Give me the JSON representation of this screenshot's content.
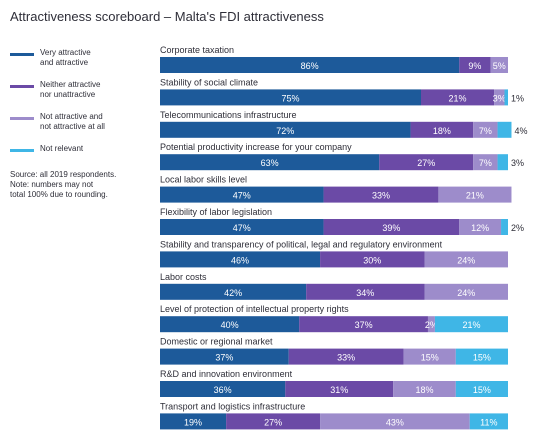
{
  "title": "Attractiveness scoreboard – Malta's FDI attractiveness",
  "legend": [
    {
      "label": "Very attractive\nand attractive",
      "color": "#1d5a9a"
    },
    {
      "label": "Neither attractive\nnor unattractive",
      "color": "#6b4aa6"
    },
    {
      "label": "Not attractive and\nnot attractive at all",
      "color": "#9d8ccb"
    },
    {
      "label": "Not relevant",
      "color": "#3fb6e6"
    }
  ],
  "note": "Source: all 2019 respondents.\nNote: numbers may not\ntotal 100% due to rounding.",
  "chart_data": {
    "type": "bar",
    "orientation": "horizontal",
    "stacked": true,
    "title": "Attractiveness scoreboard – Malta's FDI attractiveness",
    "categories": [
      "Corporate taxation",
      "Stability of social climate",
      "Telecommunications infrastructure",
      "Potential productivity increase for your company",
      "Local labor skills level",
      "Flexibility of labor legislation",
      "Stability and transparency of political, legal and regulatory environment",
      "Labor costs",
      "Level of protection of intellectual property rights",
      "Domestic or regional market",
      "R&D and innovation environment",
      "Transport and logistics infrastructure"
    ],
    "series": [
      {
        "name": "Very attractive and attractive",
        "color": "#1d5a9a",
        "values": [
          86,
          75,
          72,
          63,
          47,
          47,
          46,
          42,
          40,
          37,
          36,
          19
        ]
      },
      {
        "name": "Neither attractive nor unattractive",
        "color": "#6b4aa6",
        "values": [
          9,
          21,
          18,
          27,
          33,
          39,
          30,
          34,
          37,
          33,
          31,
          27
        ]
      },
      {
        "name": "Not attractive and not attractive at all",
        "color": "#9d8ccb",
        "values": [
          5,
          3,
          7,
          7,
          21,
          12,
          24,
          24,
          2,
          15,
          18,
          43
        ]
      },
      {
        "name": "Not relevant",
        "color": "#3fb6e6",
        "values": [
          0,
          1,
          4,
          3,
          0,
          2,
          0,
          0,
          21,
          15,
          15,
          11
        ]
      }
    ],
    "labels": [
      [
        "86%",
        "9%",
        "5%",
        ""
      ],
      [
        "75%",
        "21%",
        "3%",
        "1%"
      ],
      [
        "72%",
        "18%",
        "7%",
        "4%"
      ],
      [
        "63%",
        "27%",
        "7%",
        "3%"
      ],
      [
        "47%",
        "33%",
        "21%",
        ""
      ],
      [
        "47%",
        "39%",
        "12%",
        "2%"
      ],
      [
        "46%",
        "30%",
        "24%",
        ""
      ],
      [
        "42%",
        "34%",
        "24%",
        ""
      ],
      [
        "40%",
        "37%",
        "2%",
        "21%"
      ],
      [
        "37%",
        "33%",
        "15%",
        "15%"
      ],
      [
        "36%",
        "31%",
        "18%",
        "15%"
      ],
      [
        "19%",
        "27%",
        "43%",
        "11%"
      ]
    ],
    "xlim": [
      0,
      100
    ],
    "legend_position": "left"
  }
}
